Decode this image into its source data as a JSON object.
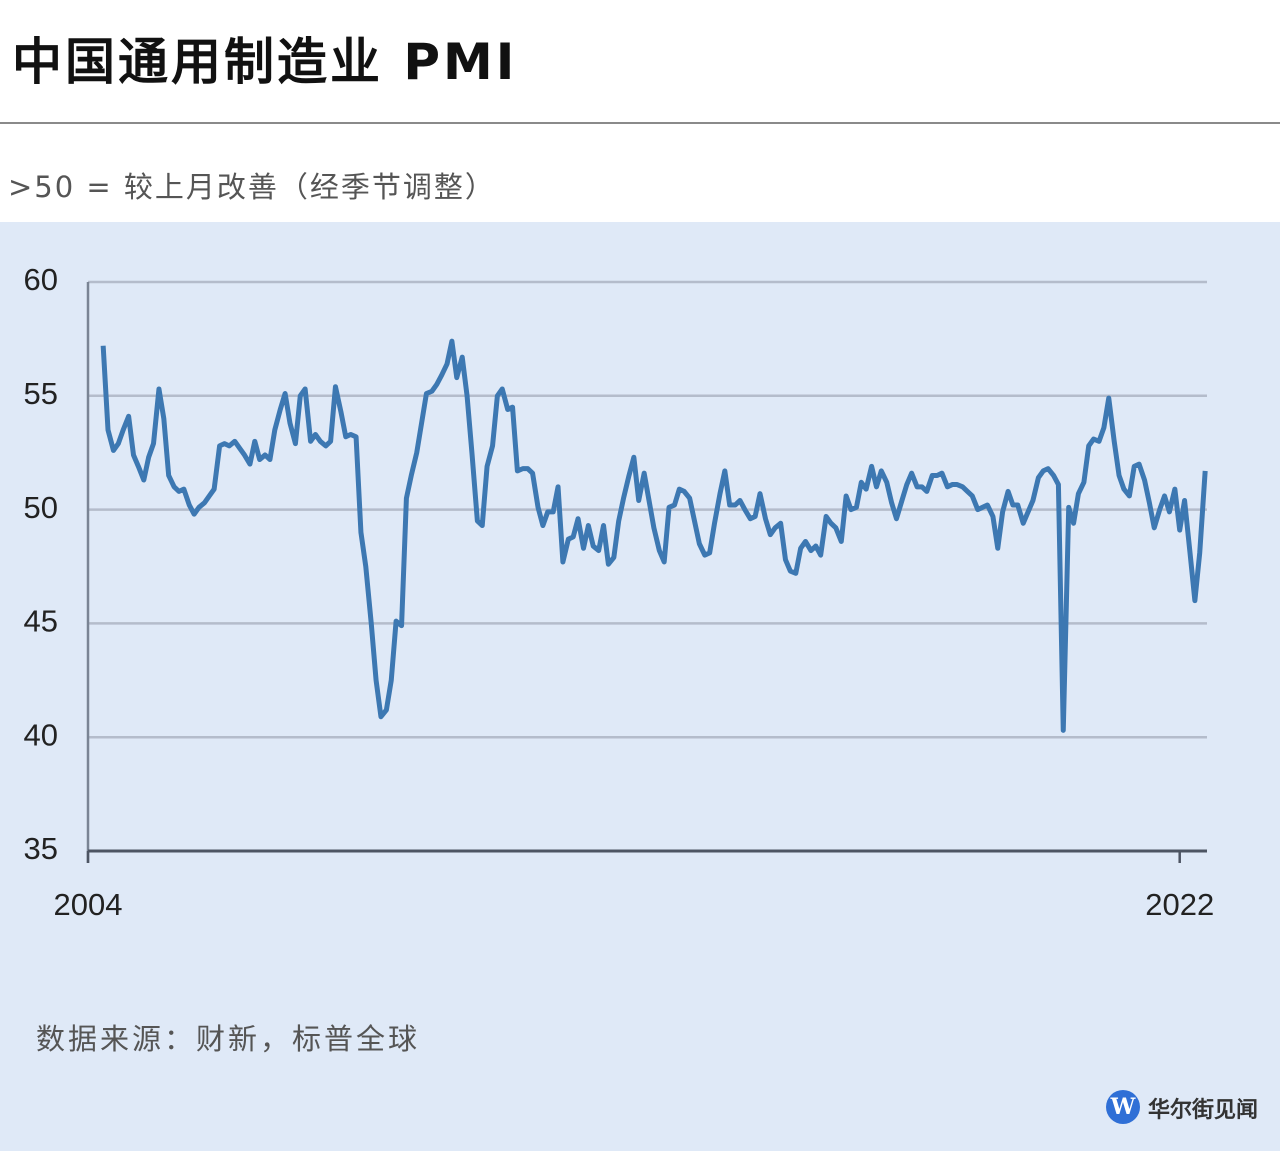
{
  "chart_data": {
    "type": "line",
    "title": "中国通用制造业 PMI",
    "subtitle": ">50 = 较上月改善（经季节调整）",
    "source": "数据来源：财新，标普全球",
    "watermark": "华尔街见闻",
    "xlim": [
      2004,
      2022.45
    ],
    "xticks": [
      2004,
      2022
    ],
    "ylim": [
      35,
      60
    ],
    "yticks": [
      35,
      40,
      45,
      50,
      55,
      60
    ],
    "grid": true,
    "x": [
      2004.25,
      2004.33,
      2004.42,
      2004.5,
      2004.58,
      2004.67,
      2004.75,
      2004.83,
      2004.92,
      2005,
      2005.08,
      2005.17,
      2005.25,
      2005.33,
      2005.42,
      2005.5,
      2005.58,
      2005.67,
      2005.75,
      2005.83,
      2005.92,
      2006,
      2006.08,
      2006.17,
      2006.25,
      2006.33,
      2006.42,
      2006.5,
      2006.58,
      2006.67,
      2006.75,
      2006.83,
      2006.92,
      2007,
      2007.08,
      2007.17,
      2007.25,
      2007.33,
      2007.42,
      2007.5,
      2007.58,
      2007.67,
      2007.75,
      2007.83,
      2007.92,
      2008,
      2008.08,
      2008.17,
      2008.25,
      2008.33,
      2008.42,
      2008.5,
      2008.58,
      2008.67,
      2008.75,
      2008.83,
      2008.92,
      2009,
      2009.08,
      2009.17,
      2009.25,
      2009.33,
      2009.42,
      2009.5,
      2009.58,
      2009.67,
      2009.75,
      2009.83,
      2009.92,
      2010,
      2010.08,
      2010.17,
      2010.25,
      2010.33,
      2010.42,
      2010.5,
      2010.58,
      2010.67,
      2010.75,
      2010.83,
      2010.92,
      2011,
      2011.08,
      2011.17,
      2011.25,
      2011.33,
      2011.42,
      2011.5,
      2011.58,
      2011.67,
      2011.75,
      2011.83,
      2011.92,
      2012,
      2012.08,
      2012.17,
      2012.25,
      2012.33,
      2012.42,
      2012.5,
      2012.58,
      2012.67,
      2012.75,
      2012.83,
      2012.92,
      2013,
      2013.08,
      2013.17,
      2013.25,
      2013.33,
      2013.42,
      2013.5,
      2013.58,
      2013.67,
      2013.75,
      2013.83,
      2013.92,
      2014,
      2014.08,
      2014.17,
      2014.25,
      2014.33,
      2014.42,
      2014.5,
      2014.58,
      2014.67,
      2014.75,
      2014.83,
      2014.92,
      2015,
      2015.08,
      2015.17,
      2015.25,
      2015.33,
      2015.42,
      2015.5,
      2015.58,
      2015.67,
      2015.75,
      2015.83,
      2015.92,
      2016,
      2016.08,
      2016.17,
      2016.25,
      2016.33,
      2016.42,
      2016.5,
      2016.58,
      2016.67,
      2016.75,
      2016.83,
      2016.92,
      2017,
      2017.08,
      2017.17,
      2017.25,
      2017.33,
      2017.42,
      2017.5,
      2017.58,
      2017.67,
      2017.75,
      2017.83,
      2017.92,
      2018,
      2018.08,
      2018.17,
      2018.25,
      2018.33,
      2018.42,
      2018.5,
      2018.58,
      2018.67,
      2018.75,
      2018.83,
      2018.92,
      2019,
      2019.08,
      2019.17,
      2019.25,
      2019.33,
      2019.42,
      2019.5,
      2019.58,
      2019.67,
      2019.75,
      2019.83,
      2019.92,
      2020,
      2020.08,
      2020.17,
      2020.25,
      2020.33,
      2020.42,
      2020.5,
      2020.58,
      2020.67,
      2020.75,
      2020.83,
      2020.92,
      2021,
      2021.08,
      2021.17,
      2021.25,
      2021.33,
      2021.42,
      2021.5,
      2021.58,
      2021.67,
      2021.75,
      2021.83,
      2021.92,
      2022,
      2022.08,
      2022.17,
      2022.25,
      2022.33,
      2022.42
    ],
    "series": [
      {
        "color": "#3d78b2",
        "values": [
          57.2,
          53.5,
          52.6,
          52.9,
          53.5,
          54.1,
          52.4,
          51.9,
          51.3,
          52.3,
          52.9,
          55.3,
          54.0,
          51.5,
          51.0,
          50.8,
          50.9,
          50.2,
          49.8,
          50.1,
          50.3,
          50.6,
          50.9,
          52.8,
          52.9,
          52.8,
          53.0,
          52.7,
          52.4,
          52.0,
          53.0,
          52.2,
          52.4,
          52.2,
          53.5,
          54.4,
          55.1,
          53.8,
          52.9,
          55.0,
          55.3,
          53.0,
          53.3,
          53.0,
          52.8,
          53.0,
          55.4,
          54.3,
          53.2,
          53.3,
          53.2,
          49.0,
          47.5,
          45.0,
          42.5,
          40.9,
          41.2,
          42.5,
          45.1,
          44.9,
          50.5,
          51.5,
          52.5,
          53.8,
          55.1,
          55.2,
          55.5,
          55.9,
          56.4,
          57.4,
          55.8,
          56.7,
          55.0,
          52.5,
          49.5,
          49.3,
          51.9,
          52.8,
          55.0,
          55.3,
          54.4,
          54.5,
          51.7,
          51.8,
          51.8,
          51.6,
          50.1,
          49.3,
          49.9,
          49.9,
          51.0,
          47.7,
          48.7,
          48.8,
          49.6,
          48.3,
          49.3,
          48.4,
          48.2,
          49.3,
          47.6,
          47.9,
          49.5,
          50.5,
          51.5,
          52.3,
          50.4,
          51.6,
          50.4,
          49.2,
          48.2,
          47.7,
          50.1,
          50.2,
          50.9,
          50.8,
          50.5,
          49.5,
          48.5,
          48.0,
          48.1,
          49.4,
          50.7,
          51.7,
          50.2,
          50.2,
          50.4,
          50.0,
          49.6,
          49.7,
          50.7,
          49.6,
          48.9,
          49.2,
          49.4,
          47.8,
          47.3,
          47.2,
          48.3,
          48.6,
          48.2,
          48.4,
          48.0,
          49.7,
          49.4,
          49.2,
          48.6,
          50.6,
          50.0,
          50.1,
          51.2,
          50.9,
          51.9,
          51.0,
          51.7,
          51.2,
          50.3,
          49.6,
          50.4,
          51.1,
          51.6,
          51.0,
          51.0,
          50.8,
          51.5,
          51.5,
          51.6,
          51.0,
          51.1,
          51.1,
          51.0,
          50.8,
          50.6,
          50.0,
          50.1,
          50.2,
          49.7,
          48.3,
          49.9,
          50.8,
          50.2,
          50.2,
          49.4,
          49.9,
          50.4,
          51.4,
          51.7,
          51.8,
          51.5,
          51.1,
          40.3,
          50.1,
          49.4,
          50.7,
          51.2,
          52.8,
          53.1,
          53.0,
          53.6,
          54.9,
          53.0,
          51.5,
          50.9,
          50.6,
          51.9,
          52.0,
          51.3,
          50.3,
          49.2,
          50.0,
          50.6,
          49.9,
          50.9,
          49.1,
          50.4,
          48.1,
          46.0,
          48.1,
          51.7
        ]
      }
    ]
  }
}
